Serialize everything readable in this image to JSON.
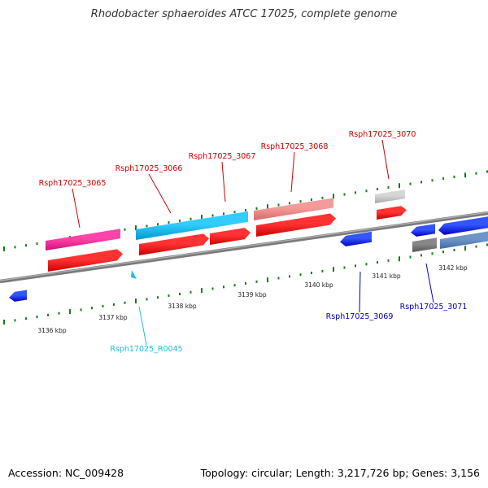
{
  "title": "Rhodobacter sphaeroides ATCC 17025, complete genome",
  "accession_label": "Accession: NC_009428",
  "summary_label": "Topology: circular; Length: 3,217,726 bp; Genes: 3,156",
  "colors": {
    "axis": "#8c8c8c",
    "tick": "#1a7a1a",
    "label_red": "#cc0000",
    "label_blue": "#0000aa",
    "label_cyan": "#22bbdd"
  },
  "scale_labels": [
    "3136 kbp",
    "3137 kbp",
    "3138 kbp",
    "3139 kbp",
    "3140 kbp",
    "3141 kbp",
    "3142 kbp"
  ],
  "gene_labels": [
    {
      "id": "g3065",
      "text": "Rsph17025_3065",
      "color": "label_red"
    },
    {
      "id": "g3066",
      "text": "Rsph17025_3066",
      "color": "label_red"
    },
    {
      "id": "g3067",
      "text": "Rsph17025_3067",
      "color": "label_red"
    },
    {
      "id": "g3068",
      "text": "Rsph17025_3068",
      "color": "label_red"
    },
    {
      "id": "g3070",
      "text": "Rsph17025_3070",
      "color": "label_red"
    },
    {
      "id": "gR0045",
      "text": "Rsph17025_R0045",
      "color": "label_cyan"
    },
    {
      "id": "g3069",
      "text": "Rsph17025_3069",
      "color": "label_blue"
    },
    {
      "id": "g3071",
      "text": "Rsph17025_3071",
      "color": "label_blue"
    }
  ]
}
